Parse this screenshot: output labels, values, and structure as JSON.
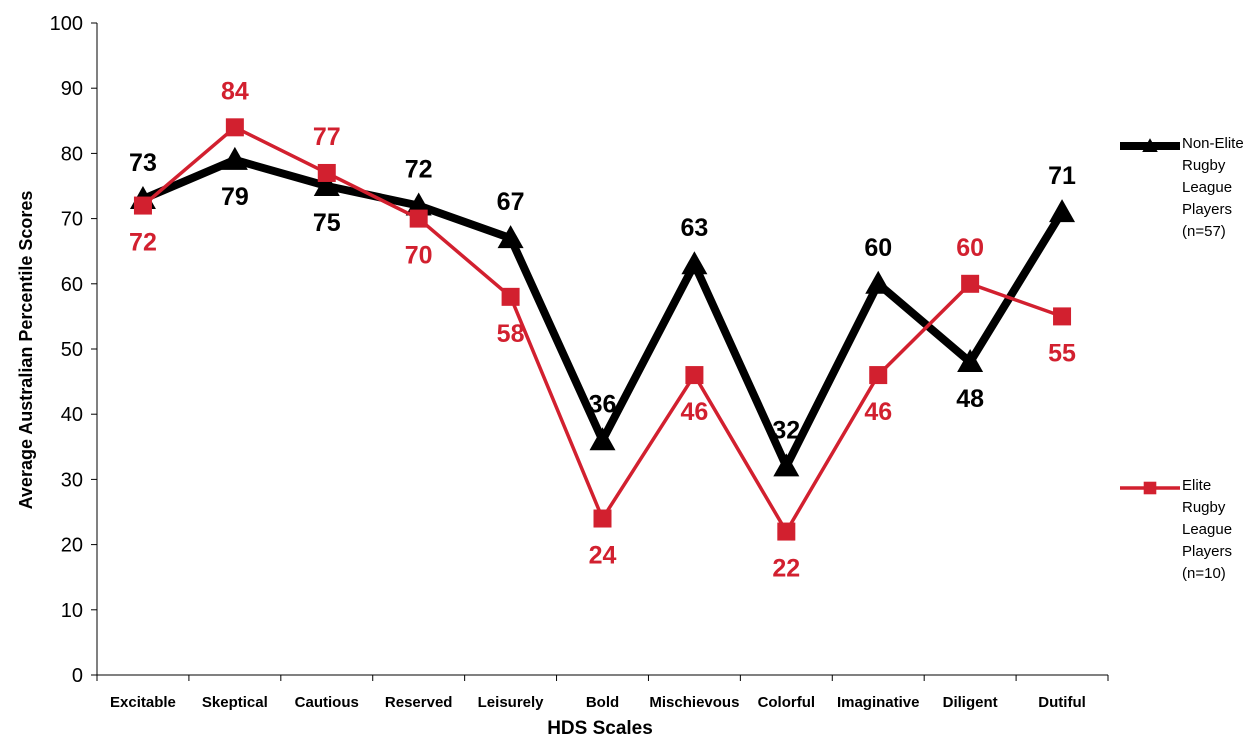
{
  "chart_data": {
    "type": "line",
    "xlabel": "HDS Scales",
    "ylabel": "Average Australian Percentile Scores",
    "categories": [
      "Excitable",
      "Skeptical",
      "Cautious",
      "Reserved",
      "Leisurely",
      "Bold",
      "Mischievous",
      "Colorful",
      "Imaginative",
      "Diligent",
      "Dutiful"
    ],
    "series": [
      {
        "name": "Non-Elite Rugby League Players (n=57)",
        "color": "#000000",
        "marker": "triangle",
        "values": [
          73,
          79,
          75,
          72,
          67,
          36,
          63,
          32,
          60,
          48,
          71
        ]
      },
      {
        "name": "Elite Rugby League Players (n=10)",
        "color": "#d2202f",
        "marker": "square",
        "values": [
          72,
          84,
          77,
          70,
          58,
          24,
          46,
          22,
          46,
          60,
          55
        ]
      }
    ],
    "ylim": [
      0,
      100
    ],
    "yticks": [
      0,
      10,
      20,
      30,
      40,
      50,
      60,
      70,
      80,
      90,
      100
    ],
    "grid": false,
    "legend": "right"
  }
}
